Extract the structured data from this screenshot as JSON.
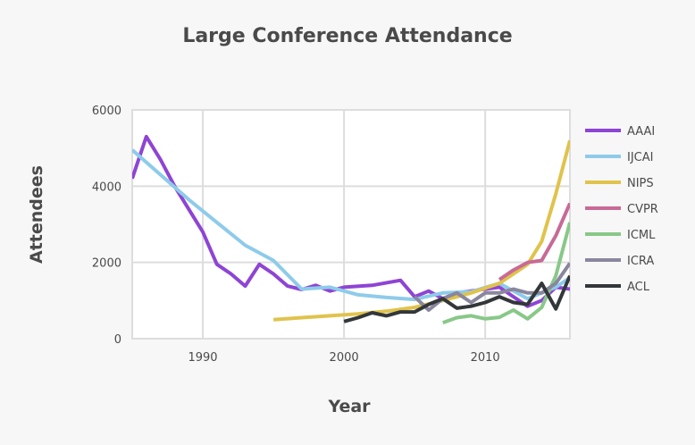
{
  "chart_data": {
    "type": "line",
    "title": "Large Conference Attendance",
    "xlabel": "Year",
    "ylabel": "Attendees",
    "xlim": [
      1985,
      2016
    ],
    "ylim": [
      0,
      6000
    ],
    "xticks": [
      1990,
      2000,
      2010
    ],
    "yticks": [
      0,
      2000,
      4000,
      6000
    ],
    "grid": true,
    "legend_position": "right",
    "series": [
      {
        "name": "AAAI",
        "color": "#8e44d4",
        "x": [
          1985,
          1986,
          1987,
          1988,
          1989,
          1990,
          1991,
          1992,
          1993,
          1994,
          1995,
          1996,
          1997,
          1998,
          1999,
          2000,
          2002,
          2004,
          2005,
          2006,
          2007,
          2008,
          2010,
          2011,
          2012,
          2013,
          2014,
          2015,
          2016
        ],
        "y": [
          4200,
          5300,
          4700,
          4000,
          3400,
          2800,
          1950,
          1700,
          1380,
          1950,
          1700,
          1380,
          1290,
          1400,
          1250,
          1350,
          1400,
          1530,
          1100,
          1250,
          1050,
          1200,
          1300,
          1350,
          1100,
          850,
          1000,
          1350,
          1300
        ]
      },
      {
        "name": "IJCAI",
        "color": "#8ecbea",
        "x": [
          1985,
          1987,
          1989,
          1991,
          1993,
          1995,
          1997,
          1999,
          2001,
          2003,
          2005,
          2007,
          2009,
          2011,
          2013,
          2015,
          2016
        ],
        "y": [
          4950,
          4300,
          3650,
          3050,
          2450,
          2050,
          1300,
          1350,
          1150,
          1080,
          1030,
          1200,
          1230,
          1450,
          1050,
          1350,
          1600
        ]
      },
      {
        "name": "NIPS",
        "color": "#e0c34c",
        "x": [
          1995,
          1997,
          1999,
          2001,
          2003,
          2005,
          2007,
          2009,
          2011,
          2013,
          2014,
          2015,
          2016
        ],
        "y": [
          500,
          550,
          600,
          650,
          720,
          820,
          1000,
          1200,
          1450,
          1950,
          2550,
          3800,
          5200
        ]
      },
      {
        "name": "CVPR",
        "color": "#c86a96",
        "x": [
          2011,
          2012,
          2013,
          2014,
          2015,
          2016
        ],
        "y": [
          1550,
          1800,
          2000,
          2050,
          2700,
          3550
        ]
      },
      {
        "name": "ICML",
        "color": "#88c888",
        "x": [
          2007,
          2008,
          2009,
          2010,
          2011,
          2012,
          2013,
          2014,
          2015,
          2016
        ],
        "y": [
          420,
          550,
          600,
          520,
          560,
          750,
          520,
          820,
          1650,
          3050
        ]
      },
      {
        "name": "ICRA",
        "color": "#8a869e",
        "x": [
          2005,
          2006,
          2007,
          2008,
          2009,
          2010,
          2011,
          2012,
          2013,
          2014,
          2015,
          2016
        ],
        "y": [
          1100,
          750,
          1050,
          1200,
          950,
          1200,
          1200,
          1300,
          1200,
          1200,
          1450,
          1980
        ]
      },
      {
        "name": "ACL",
        "color": "#33373a",
        "x": [
          2000,
          2001,
          2002,
          2003,
          2004,
          2005,
          2006,
          2007,
          2008,
          2009,
          2010,
          2011,
          2012,
          2013,
          2014,
          2015,
          2016
        ],
        "y": [
          450,
          550,
          680,
          600,
          700,
          700,
          900,
          1050,
          800,
          850,
          950,
          1100,
          950,
          900,
          1450,
          780,
          1650
        ]
      }
    ]
  }
}
